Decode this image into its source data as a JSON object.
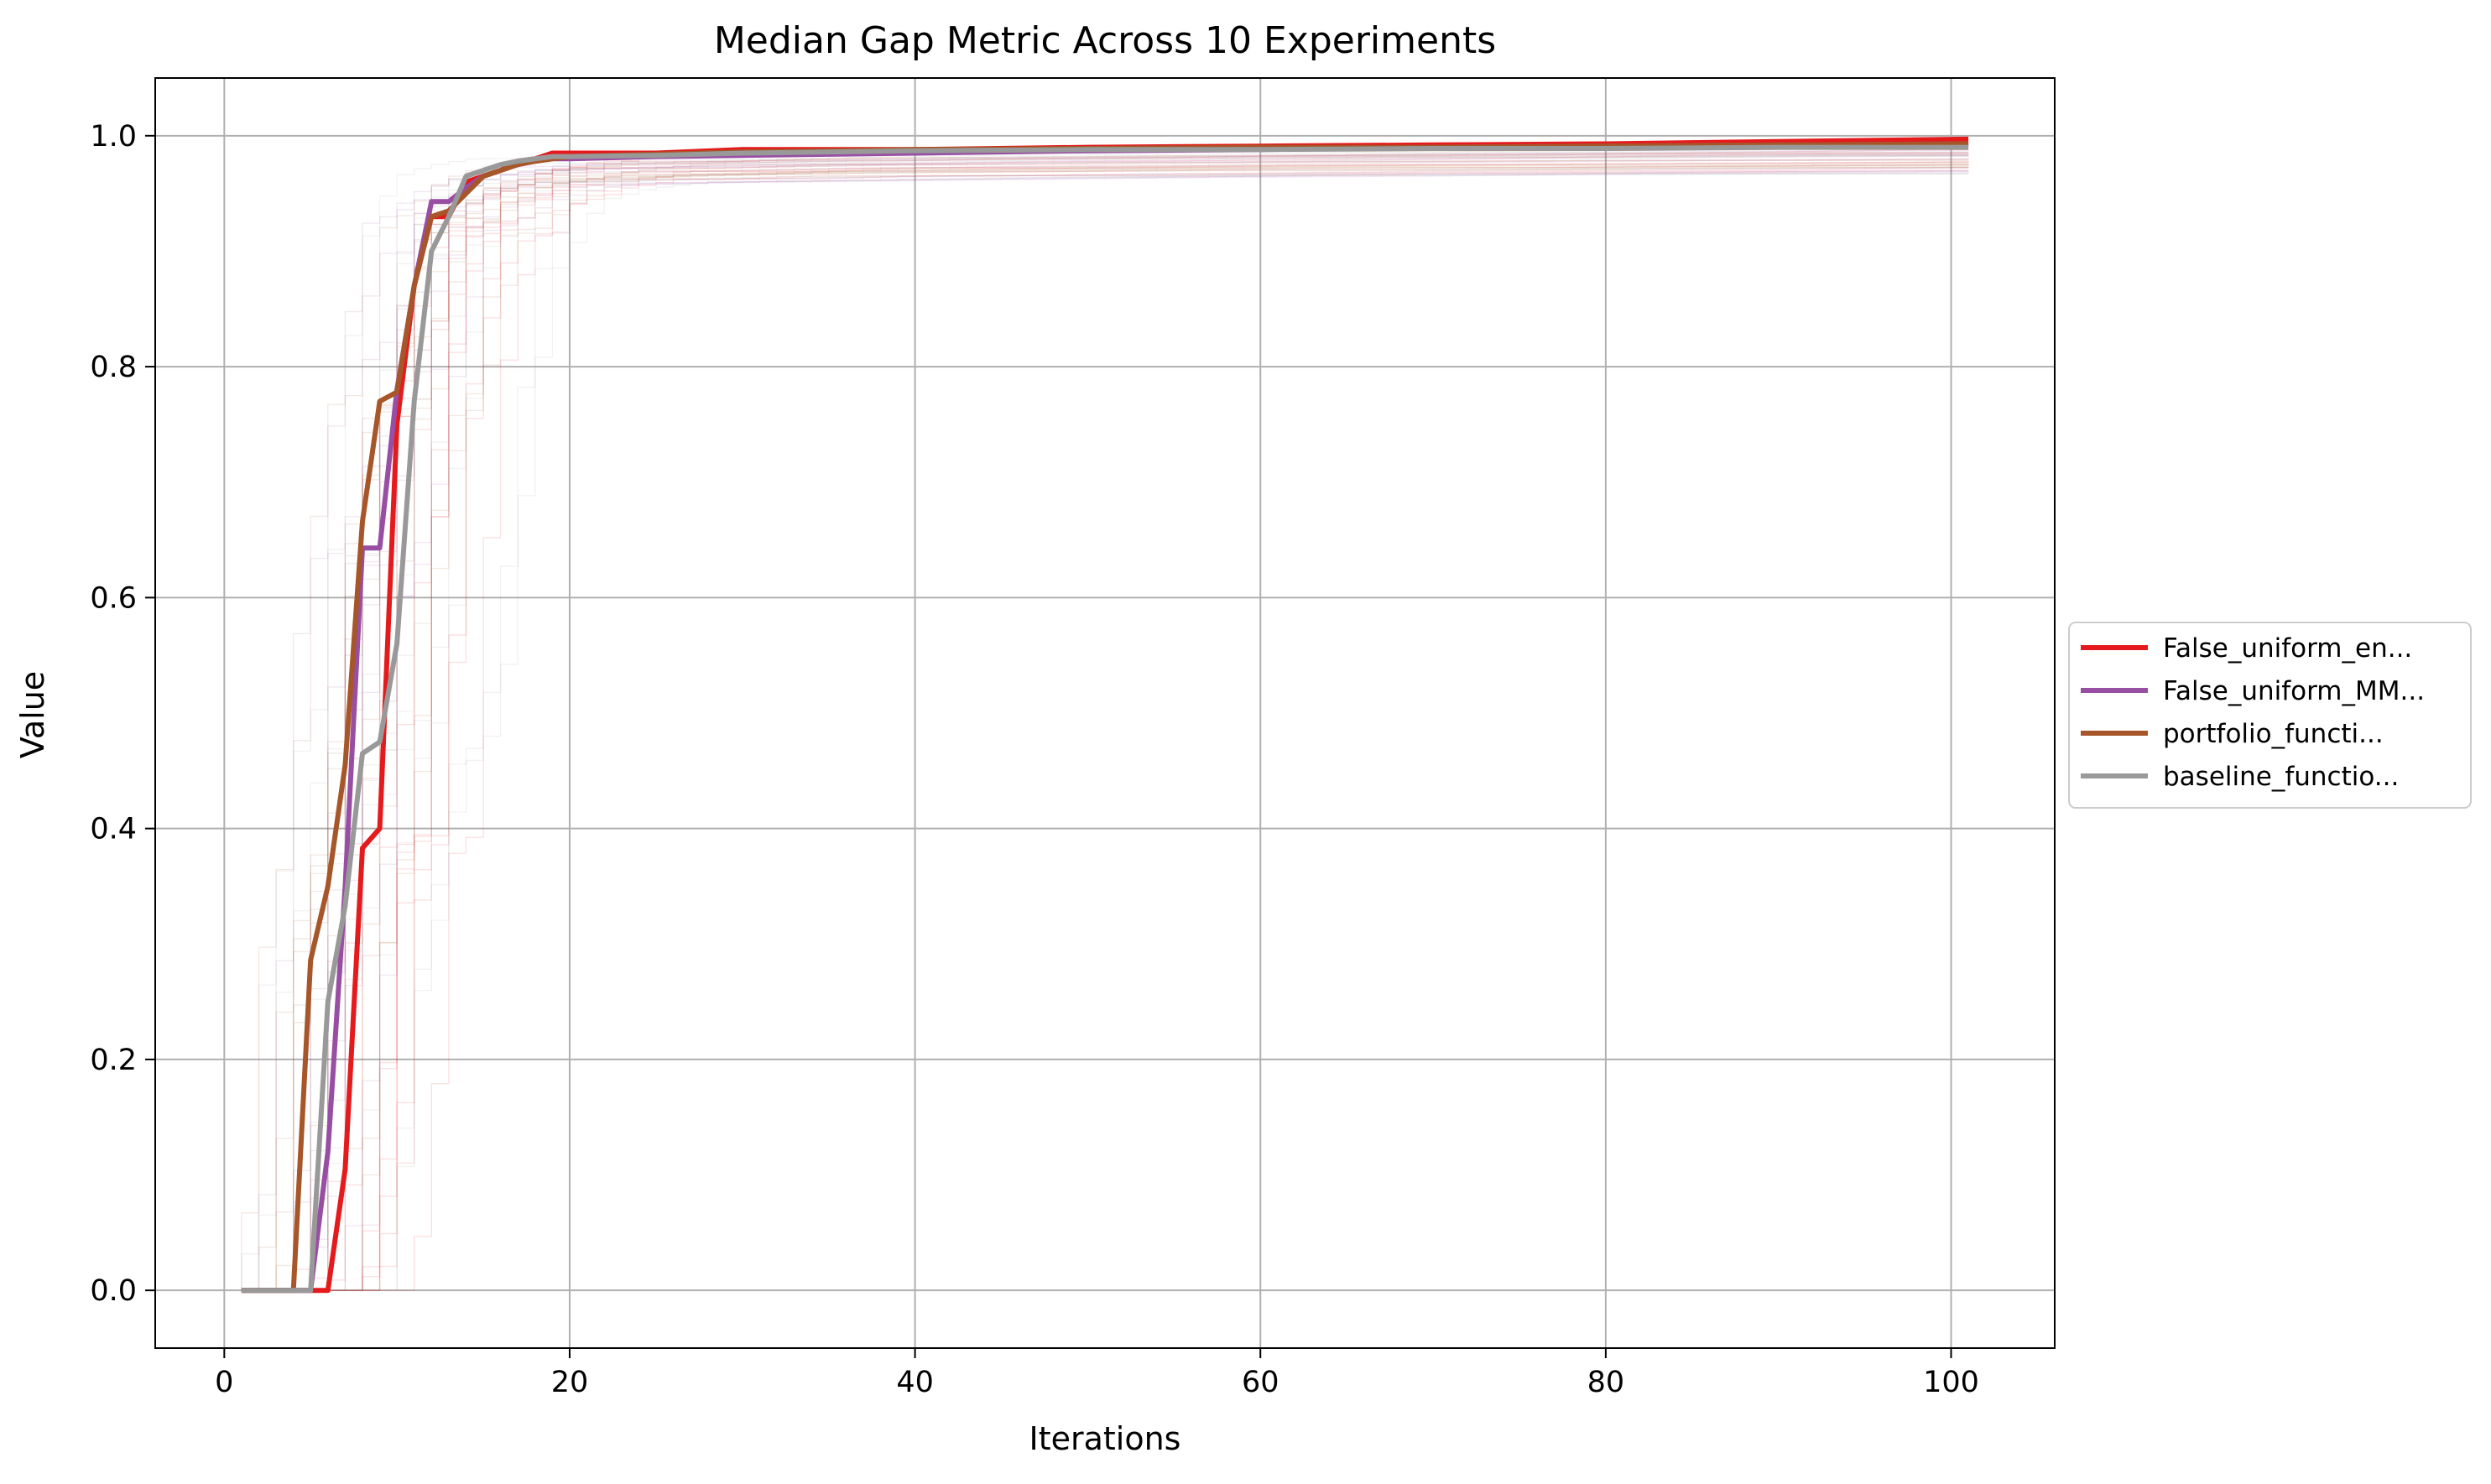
{
  "chart_data": {
    "type": "line",
    "title": "Median Gap Metric Across 10 Experiments",
    "xlabel": "Iterations",
    "ylabel": "Value",
    "xlim": [
      -4,
      106
    ],
    "ylim": [
      -0.05,
      1.05
    ],
    "xticks": [
      0,
      20,
      40,
      60,
      80,
      100
    ],
    "yticks": [
      0.0,
      0.2,
      0.4,
      0.6,
      0.8,
      1.0
    ],
    "xtick_labels": [
      "0",
      "20",
      "40",
      "60",
      "80",
      "100"
    ],
    "ytick_labels": [
      "0.0",
      "0.2",
      "0.4",
      "0.6",
      "0.8",
      "1.0"
    ],
    "grid": true,
    "legend_position": "center-right outside",
    "series": [
      {
        "name": "False_uniform_en...",
        "color": "#e41a1c",
        "x": [
          1,
          2,
          3,
          4,
          5,
          6,
          7,
          8,
          9,
          10,
          11,
          12,
          13,
          14,
          15,
          16,
          17,
          18,
          19,
          20,
          25,
          30,
          40,
          50,
          60,
          70,
          80,
          90,
          101
        ],
        "y": [
          0,
          0,
          0,
          0,
          0,
          0,
          0.105,
          0.383,
          0.4,
          0.75,
          0.87,
          0.93,
          0.93,
          0.96,
          0.965,
          0.97,
          0.978,
          0.98,
          0.985,
          0.985,
          0.985,
          0.988,
          0.988,
          0.99,
          0.991,
          0.992,
          0.993,
          0.995,
          0.997
        ]
      },
      {
        "name": "False_uniform_MM...",
        "color": "#984ea3",
        "x": [
          1,
          2,
          3,
          4,
          5,
          6,
          7,
          8,
          9,
          10,
          11,
          12,
          13,
          14,
          15,
          16,
          17,
          18,
          19,
          20,
          25,
          30,
          40,
          50,
          60,
          70,
          80,
          90,
          101
        ],
        "y": [
          0,
          0,
          0,
          0,
          0,
          0.12,
          0.35,
          0.643,
          0.643,
          0.78,
          0.87,
          0.943,
          0.943,
          0.955,
          0.965,
          0.97,
          0.975,
          0.978,
          0.98,
          0.98,
          0.982,
          0.983,
          0.985,
          0.987,
          0.988,
          0.99,
          0.991,
          0.992,
          0.993
        ]
      },
      {
        "name": "portfolio_functi...",
        "color": "#a65628",
        "x": [
          1,
          2,
          3,
          4,
          5,
          6,
          7,
          8,
          9,
          10,
          11,
          12,
          13,
          14,
          15,
          16,
          17,
          18,
          19,
          20,
          25,
          30,
          40,
          50,
          60,
          70,
          80,
          90,
          101
        ],
        "y": [
          0,
          0,
          0,
          0,
          0.286,
          0.35,
          0.455,
          0.666,
          0.77,
          0.778,
          0.87,
          0.93,
          0.935,
          0.95,
          0.965,
          0.97,
          0.975,
          0.978,
          0.98,
          0.982,
          0.984,
          0.986,
          0.988,
          0.989,
          0.99,
          0.99,
          0.991,
          0.992,
          0.993
        ]
      },
      {
        "name": "baseline_functio...",
        "color": "#999999",
        "x": [
          1,
          2,
          3,
          4,
          5,
          6,
          7,
          8,
          9,
          10,
          11,
          12,
          13,
          14,
          15,
          16,
          17,
          18,
          19,
          20,
          25,
          30,
          40,
          50,
          60,
          70,
          80,
          90,
          101
        ],
        "y": [
          0,
          0,
          0,
          0,
          0,
          0.25,
          0.333,
          0.465,
          0.475,
          0.56,
          0.77,
          0.9,
          0.93,
          0.965,
          0.97,
          0.975,
          0.978,
          0.98,
          0.982,
          0.982,
          0.983,
          0.985,
          0.987,
          0.988,
          0.988,
          0.989,
          0.989,
          0.99,
          0.99
        ]
      }
    ]
  }
}
